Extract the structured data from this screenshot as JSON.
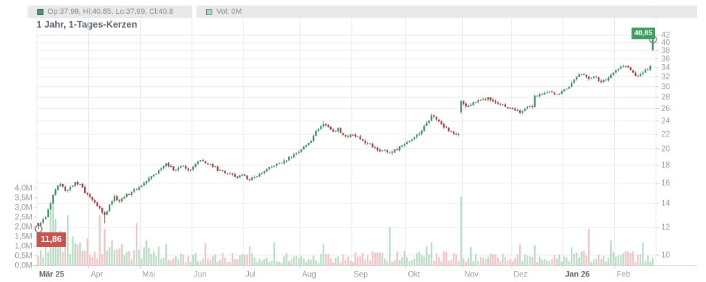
{
  "header": {
    "ohlc_readout": "Op:37.99, Hi:40.85, Lo:37.99, Cl:40.8",
    "volume_readout": "Vol: 0M"
  },
  "title": "1 Jahr, 1-Tages-Kerzen",
  "colors": {
    "candle_up": "#3f8f63",
    "candle_down": "#a73b3c",
    "volume_up": "#b9dcc5",
    "volume_down": "#f3c2c6",
    "grid": "#ebebeb",
    "grid_vertical": "#e7e7e7",
    "axis_line": "#cccccc",
    "axis_text": "#9b9b9b",
    "axis_text_bold": "#6b6b6b",
    "marker_ring": "#777777",
    "badge_high_bg": "#3f9e63",
    "badge_low_bg": "#c9534f",
    "header_bg": "#e9e9e9",
    "header_text": "#8a8a8a",
    "title_text": "#5a6570"
  },
  "chart_data": {
    "type": "candlestick",
    "title": "1 Jahr, 1-Tages-Kerzen",
    "period": "1 Jahr",
    "interval": "1-Tages-Kerzen",
    "days": 251,
    "last_ohlc": {
      "open": 37.99,
      "high": 40.85,
      "low": 37.99,
      "close": 40.8,
      "volume": "0M"
    },
    "price_axis": {
      "side": "right",
      "scale": "log",
      "ticks": [
        42,
        40,
        38,
        36,
        34,
        32,
        30,
        28,
        26,
        24,
        22,
        20,
        18,
        16,
        14,
        12,
        10
      ],
      "range": [
        9.8,
        43.5
      ]
    },
    "volume_axis": {
      "side": "left",
      "ticks": [
        "4,0M",
        "3,5M",
        "3,0M",
        "2,5M",
        "2,0M",
        "1,5M",
        "1,0M",
        "0,5M",
        "0,0M"
      ],
      "max_millions": 4.0
    },
    "x_axis": {
      "labels": [
        {
          "label": "Mär 25",
          "index": 0,
          "bold": true
        },
        {
          "label": "Apr",
          "index": 21,
          "bold": false
        },
        {
          "label": "Mai",
          "index": 42,
          "bold": false
        },
        {
          "label": "Jun",
          "index": 63,
          "bold": false
        },
        {
          "label": "Jul",
          "index": 84,
          "bold": false
        },
        {
          "label": "Aug",
          "index": 107,
          "bold": false
        },
        {
          "label": "Sep",
          "index": 128,
          "bold": false
        },
        {
          "label": "Okt",
          "index": 150,
          "bold": false
        },
        {
          "label": "Nov",
          "index": 173,
          "bold": false
        },
        {
          "label": "Dez",
          "index": 193,
          "bold": false
        },
        {
          "label": "Jan 26",
          "index": 214,
          "bold": true
        },
        {
          "label": "Feb",
          "index": 235,
          "bold": false
        }
      ]
    },
    "markers": {
      "high": {
        "index": 250,
        "price": 40.85,
        "label": "40,85"
      },
      "low": {
        "index": 0,
        "price": 11.86,
        "label": "11,86"
      }
    },
    "close_anchors": [
      [
        0,
        12.1
      ],
      [
        1,
        12.35
      ],
      [
        3,
        12.8
      ],
      [
        5,
        14.0
      ],
      [
        7,
        15.3
      ],
      [
        9,
        15.9
      ],
      [
        11,
        15.2
      ],
      [
        13,
        15.6
      ],
      [
        15,
        16.1
      ],
      [
        17,
        15.9
      ],
      [
        19,
        15.0
      ],
      [
        21,
        14.6
      ],
      [
        23,
        14.1
      ],
      [
        25,
        13.6
      ],
      [
        26,
        13.2
      ],
      [
        27,
        13.0
      ],
      [
        29,
        13.9
      ],
      [
        31,
        14.7
      ],
      [
        33,
        14.2
      ],
      [
        35,
        14.6
      ],
      [
        38,
        15.1
      ],
      [
        41,
        15.6
      ],
      [
        44,
        16.2
      ],
      [
        47,
        16.9
      ],
      [
        50,
        17.6
      ],
      [
        52,
        18.2
      ],
      [
        55,
        17.4
      ],
      [
        58,
        17.9
      ],
      [
        61,
        17.4
      ],
      [
        63,
        17.8
      ],
      [
        66,
        18.6
      ],
      [
        68,
        18.2
      ],
      [
        71,
        17.8
      ],
      [
        74,
        17.4
      ],
      [
        77,
        17.0
      ],
      [
        81,
        16.6
      ],
      [
        84,
        16.8
      ],
      [
        86,
        16.3
      ],
      [
        89,
        16.7
      ],
      [
        92,
        17.3
      ],
      [
        96,
        17.9
      ],
      [
        100,
        18.5
      ],
      [
        104,
        19.3
      ],
      [
        107,
        19.9
      ],
      [
        110,
        20.8
      ],
      [
        112,
        21.8
      ],
      [
        114,
        22.8
      ],
      [
        116,
        23.5
      ],
      [
        118,
        23.1
      ],
      [
        120,
        22.4
      ],
      [
        122,
        22.9
      ],
      [
        124,
        21.9
      ],
      [
        126,
        21.6
      ],
      [
        128,
        21.9
      ],
      [
        131,
        21.3
      ],
      [
        134,
        20.7
      ],
      [
        137,
        20.1
      ],
      [
        140,
        19.8
      ],
      [
        144,
        19.5
      ],
      [
        147,
        20.3
      ],
      [
        150,
        20.9
      ],
      [
        153,
        21.6
      ],
      [
        156,
        22.5
      ],
      [
        158,
        23.7
      ],
      [
        160,
        24.9
      ],
      [
        162,
        24.2
      ],
      [
        164,
        23.5
      ],
      [
        166,
        22.9
      ],
      [
        168,
        22.4
      ],
      [
        170,
        21.9
      ],
      [
        171,
        22.1
      ],
      [
        172,
        27.3
      ],
      [
        174,
        26.4
      ],
      [
        176,
        26.6
      ],
      [
        178,
        27.1
      ],
      [
        181,
        27.7
      ],
      [
        183,
        28.0
      ],
      [
        185,
        27.3
      ],
      [
        188,
        26.7
      ],
      [
        191,
        26.1
      ],
      [
        194,
        25.7
      ],
      [
        196,
        25.3
      ],
      [
        198,
        26.0
      ],
      [
        200,
        26.4
      ],
      [
        201,
        26.3
      ],
      [
        202,
        28.3
      ],
      [
        204,
        28.5
      ],
      [
        207,
        28.9
      ],
      [
        210,
        28.6
      ],
      [
        213,
        29.1
      ],
      [
        215,
        29.6
      ],
      [
        217,
        30.8
      ],
      [
        219,
        32.0
      ],
      [
        221,
        32.5
      ],
      [
        223,
        32.1
      ],
      [
        225,
        31.7
      ],
      [
        227,
        31.9
      ],
      [
        229,
        30.9
      ],
      [
        231,
        31.4
      ],
      [
        233,
        32.4
      ],
      [
        235,
        33.4
      ],
      [
        237,
        34.2
      ],
      [
        239,
        34.3
      ],
      [
        241,
        33.4
      ],
      [
        243,
        32.2
      ],
      [
        245,
        32.6
      ],
      [
        247,
        33.5
      ],
      [
        249,
        34.3
      ],
      [
        250,
        40.8
      ]
    ],
    "gap_opens": {
      "172": 25.4,
      "250": 37.99
    },
    "wick_overrides": {
      "low": {
        "0": 11.86,
        "27": 12.3,
        "144": 19.2,
        "250": 37.99
      },
      "high": {
        "116": 24.0,
        "160": 25.2,
        "250": 40.85
      }
    },
    "volume_spikes_millions": [
      [
        3,
        1.6
      ],
      [
        5,
        2.9
      ],
      [
        6,
        3.1
      ],
      [
        7,
        2.4
      ],
      [
        9,
        1.8
      ],
      [
        12,
        2.6
      ],
      [
        14,
        1.5
      ],
      [
        17,
        1.2
      ],
      [
        20,
        1.4
      ],
      [
        25,
        2.6
      ],
      [
        27,
        1.9
      ],
      [
        30,
        1.3
      ],
      [
        34,
        1.1
      ],
      [
        40,
        2.2
      ],
      [
        44,
        1.3
      ],
      [
        52,
        1.1
      ],
      [
        68,
        1.15
      ],
      [
        86,
        1.0
      ],
      [
        96,
        1.2
      ],
      [
        116,
        1.1
      ],
      [
        143,
        2.0
      ],
      [
        158,
        1.0
      ],
      [
        160,
        1.2
      ],
      [
        172,
        3.57
      ],
      [
        176,
        0.95
      ],
      [
        196,
        1.1
      ],
      [
        202,
        1.05
      ],
      [
        217,
        0.95
      ],
      [
        224,
        1.9
      ],
      [
        233,
        1.3
      ],
      [
        246,
        1.2
      ],
      [
        250,
        0.4
      ]
    ]
  }
}
